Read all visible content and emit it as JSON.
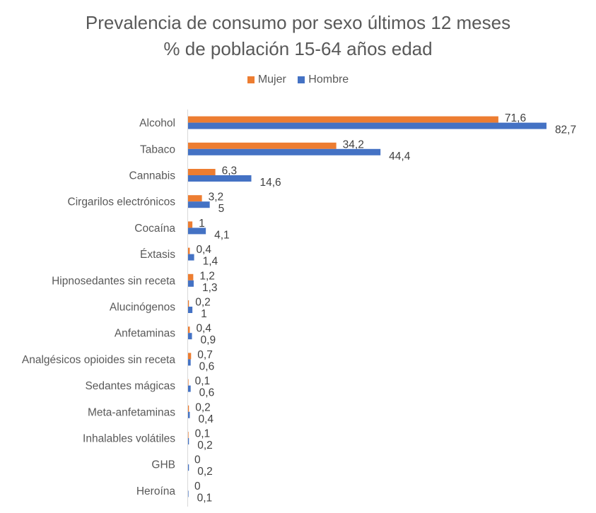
{
  "chart_data": {
    "type": "bar",
    "orientation": "horizontal",
    "title": [
      "Prevalencia de consumo por sexo últimos 12 meses",
      "% de población 15-64 años edad"
    ],
    "legend": {
      "position": "top"
    },
    "grid": false,
    "xlim": [
      0,
      90
    ],
    "categories": [
      "Alcohol",
      "Tabaco",
      "Cannabis",
      "Cirgarilos electrónicos",
      "Cocaína",
      "Éxtasis",
      "Hipnosedantes sin receta",
      "Alucinógenos",
      "Anfetaminas",
      "Analgésicos opioides sin receta",
      "Sedantes mágicas",
      "Meta-anfetaminas",
      "Inhalables volátiles",
      "GHB",
      "Heroína"
    ],
    "series": [
      {
        "name": "Mujer",
        "color": "#ED7D31",
        "values": [
          71.6,
          34.2,
          6.3,
          3.2,
          1,
          0.4,
          1.2,
          0.2,
          0.4,
          0.7,
          0.1,
          0.2,
          0.1,
          0,
          0
        ],
        "labels": [
          "71,6",
          "34,2",
          "6,3",
          "3,2",
          "1",
          "0,4",
          "1,2",
          "0,2",
          "0,4",
          "0,7",
          "0,1",
          "0,2",
          "0,1",
          "0",
          "0"
        ]
      },
      {
        "name": "Hombre",
        "color": "#4472C4",
        "values": [
          82.7,
          44.4,
          14.6,
          5,
          4.1,
          1.4,
          1.3,
          1,
          0.9,
          0.6,
          0.6,
          0.4,
          0.2,
          0.2,
          0.1
        ],
        "labels": [
          "82,7",
          "44,4",
          "14,6",
          "5",
          "4,1",
          "1,4",
          "1,3",
          "1",
          "0,9",
          "0,6",
          "0,6",
          "0,4",
          "0,2",
          "0,2",
          "0,1"
        ]
      }
    ]
  }
}
